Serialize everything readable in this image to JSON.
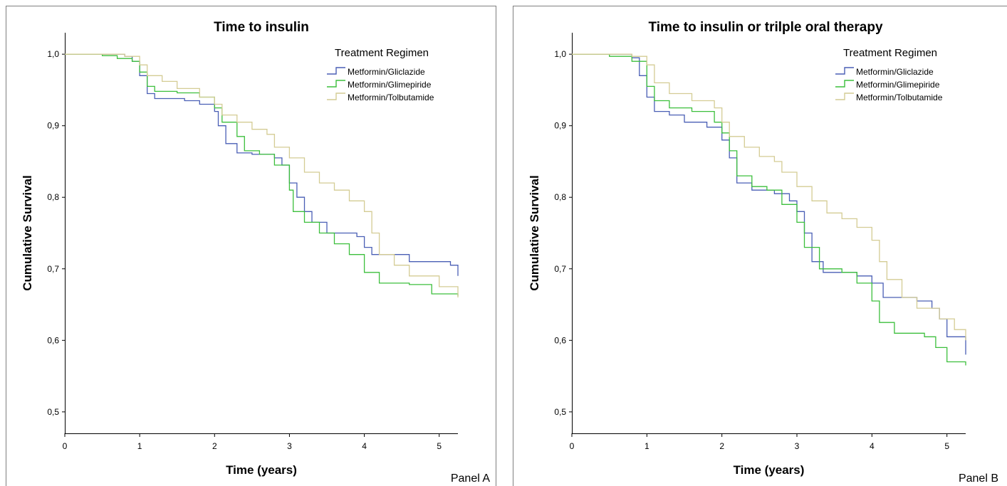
{
  "chart_data": [
    {
      "type": "line",
      "panel_label": "Panel A",
      "title": "Time to insulin",
      "xlabel": "Time (years)",
      "ylabel": "Cumulative Survival",
      "xlim": [
        0,
        5.25
      ],
      "ylim": [
        0.47,
        1.03
      ],
      "x_ticks": [
        0,
        1,
        2,
        3,
        4,
        5
      ],
      "x_tick_labels": [
        "0",
        "1",
        "2",
        "3",
        "4",
        "5"
      ],
      "y_ticks": [
        0.5,
        0.6,
        0.7,
        0.8,
        0.9,
        1.0
      ],
      "y_tick_labels": [
        "0,5",
        "0,6",
        "0,7",
        "0,8",
        "0,9",
        "1,0"
      ],
      "grid": false,
      "step": true,
      "legend": {
        "title": "Treatment Regimen",
        "position": "top-right"
      },
      "series": [
        {
          "name": "Metformin/Gliclazide",
          "color": "#4a5fb5",
          "points": [
            [
              0,
              1.0
            ],
            [
              0.8,
              0.997
            ],
            [
              0.9,
              0.99
            ],
            [
              1.0,
              0.97
            ],
            [
              1.1,
              0.945
            ],
            [
              1.2,
              0.938
            ],
            [
              1.6,
              0.935
            ],
            [
              1.8,
              0.93
            ],
            [
              2.0,
              0.92
            ],
            [
              2.05,
              0.9
            ],
            [
              2.15,
              0.875
            ],
            [
              2.3,
              0.862
            ],
            [
              2.5,
              0.86
            ],
            [
              2.8,
              0.855
            ],
            [
              2.9,
              0.845
            ],
            [
              3.0,
              0.82
            ],
            [
              3.1,
              0.8
            ],
            [
              3.2,
              0.78
            ],
            [
              3.3,
              0.765
            ],
            [
              3.5,
              0.75
            ],
            [
              3.9,
              0.745
            ],
            [
              4.0,
              0.73
            ],
            [
              4.1,
              0.72
            ],
            [
              4.6,
              0.71
            ],
            [
              5.15,
              0.705
            ],
            [
              5.25,
              0.69
            ]
          ]
        },
        {
          "name": "Metformin/Glimepiride",
          "color": "#3cbf3c",
          "points": [
            [
              0,
              1.0
            ],
            [
              0.5,
              0.998
            ],
            [
              0.7,
              0.994
            ],
            [
              0.9,
              0.99
            ],
            [
              1.0,
              0.975
            ],
            [
              1.1,
              0.955
            ],
            [
              1.2,
              0.948
            ],
            [
              1.5,
              0.946
            ],
            [
              1.8,
              0.94
            ],
            [
              2.0,
              0.925
            ],
            [
              2.1,
              0.905
            ],
            [
              2.3,
              0.885
            ],
            [
              2.4,
              0.865
            ],
            [
              2.6,
              0.86
            ],
            [
              2.8,
              0.845
            ],
            [
              3.0,
              0.81
            ],
            [
              3.05,
              0.78
            ],
            [
              3.2,
              0.765
            ],
            [
              3.4,
              0.75
            ],
            [
              3.6,
              0.735
            ],
            [
              3.8,
              0.72
            ],
            [
              4.0,
              0.695
            ],
            [
              4.2,
              0.68
            ],
            [
              4.6,
              0.678
            ],
            [
              4.9,
              0.665
            ],
            [
              5.25,
              0.662
            ]
          ]
        },
        {
          "name": "Metformin/Tolbutamide",
          "color": "#d4cc94",
          "points": [
            [
              0,
              1.0
            ],
            [
              0.8,
              0.997
            ],
            [
              1.0,
              0.985
            ],
            [
              1.1,
              0.97
            ],
            [
              1.3,
              0.962
            ],
            [
              1.5,
              0.952
            ],
            [
              1.8,
              0.94
            ],
            [
              2.0,
              0.93
            ],
            [
              2.1,
              0.915
            ],
            [
              2.3,
              0.905
            ],
            [
              2.5,
              0.895
            ],
            [
              2.7,
              0.888
            ],
            [
              2.8,
              0.87
            ],
            [
              3.0,
              0.855
            ],
            [
              3.2,
              0.835
            ],
            [
              3.4,
              0.82
            ],
            [
              3.6,
              0.81
            ],
            [
              3.8,
              0.795
            ],
            [
              4.0,
              0.78
            ],
            [
              4.1,
              0.75
            ],
            [
              4.2,
              0.72
            ],
            [
              4.4,
              0.705
            ],
            [
              4.6,
              0.69
            ],
            [
              5.0,
              0.675
            ],
            [
              5.25,
              0.66
            ]
          ]
        }
      ]
    },
    {
      "type": "line",
      "panel_label": "Panel B",
      "title": "Time to insulin or trilple oral therapy",
      "xlabel": "Time (years)",
      "ylabel": "Cumulative Survival",
      "xlim": [
        0,
        5.25
      ],
      "ylim": [
        0.47,
        1.03
      ],
      "x_ticks": [
        0,
        1,
        2,
        3,
        4,
        5
      ],
      "x_tick_labels": [
        "0",
        "1",
        "2",
        "3",
        "4",
        "5"
      ],
      "y_ticks": [
        0.5,
        0.6,
        0.7,
        0.8,
        0.9,
        1.0
      ],
      "y_tick_labels": [
        "0,5",
        "0,6",
        "0,7",
        "0,8",
        "0,9",
        "1,0"
      ],
      "grid": false,
      "step": true,
      "legend": {
        "title": "Treatment Regimen",
        "position": "top-right"
      },
      "series": [
        {
          "name": "Metformin/Gliclazide",
          "color": "#4a5fb5",
          "points": [
            [
              0,
              1.0
            ],
            [
              0.8,
              0.995
            ],
            [
              0.9,
              0.97
            ],
            [
              1.0,
              0.94
            ],
            [
              1.1,
              0.92
            ],
            [
              1.3,
              0.915
            ],
            [
              1.5,
              0.905
            ],
            [
              1.8,
              0.898
            ],
            [
              2.0,
              0.88
            ],
            [
              2.1,
              0.855
            ],
            [
              2.2,
              0.82
            ],
            [
              2.4,
              0.81
            ],
            [
              2.7,
              0.805
            ],
            [
              2.9,
              0.795
            ],
            [
              3.0,
              0.78
            ],
            [
              3.1,
              0.75
            ],
            [
              3.2,
              0.71
            ],
            [
              3.35,
              0.695
            ],
            [
              3.8,
              0.69
            ],
            [
              4.0,
              0.68
            ],
            [
              4.15,
              0.66
            ],
            [
              4.6,
              0.655
            ],
            [
              4.8,
              0.645
            ],
            [
              4.9,
              0.63
            ],
            [
              5.0,
              0.605
            ],
            [
              5.25,
              0.58
            ]
          ]
        },
        {
          "name": "Metformin/Glimepiride",
          "color": "#3cbf3c",
          "points": [
            [
              0,
              1.0
            ],
            [
              0.5,
              0.997
            ],
            [
              0.8,
              0.99
            ],
            [
              1.0,
              0.955
            ],
            [
              1.1,
              0.935
            ],
            [
              1.3,
              0.925
            ],
            [
              1.6,
              0.92
            ],
            [
              1.9,
              0.905
            ],
            [
              2.0,
              0.89
            ],
            [
              2.1,
              0.865
            ],
            [
              2.2,
              0.83
            ],
            [
              2.4,
              0.815
            ],
            [
              2.6,
              0.81
            ],
            [
              2.8,
              0.79
            ],
            [
              3.0,
              0.765
            ],
            [
              3.1,
              0.73
            ],
            [
              3.3,
              0.7
            ],
            [
              3.6,
              0.695
            ],
            [
              3.8,
              0.68
            ],
            [
              4.0,
              0.655
            ],
            [
              4.1,
              0.625
            ],
            [
              4.3,
              0.61
            ],
            [
              4.7,
              0.605
            ],
            [
              4.85,
              0.59
            ],
            [
              5.0,
              0.57
            ],
            [
              5.25,
              0.565
            ]
          ]
        },
        {
          "name": "Metformin/Tolbutamide",
          "color": "#d4cc94",
          "points": [
            [
              0,
              1.0
            ],
            [
              0.8,
              0.997
            ],
            [
              1.0,
              0.985
            ],
            [
              1.1,
              0.96
            ],
            [
              1.3,
              0.945
            ],
            [
              1.6,
              0.935
            ],
            [
              1.9,
              0.925
            ],
            [
              2.0,
              0.905
            ],
            [
              2.1,
              0.885
            ],
            [
              2.3,
              0.87
            ],
            [
              2.5,
              0.857
            ],
            [
              2.7,
              0.85
            ],
            [
              2.8,
              0.835
            ],
            [
              3.0,
              0.815
            ],
            [
              3.2,
              0.795
            ],
            [
              3.4,
              0.778
            ],
            [
              3.6,
              0.77
            ],
            [
              3.8,
              0.758
            ],
            [
              4.0,
              0.74
            ],
            [
              4.1,
              0.71
            ],
            [
              4.2,
              0.685
            ],
            [
              4.4,
              0.66
            ],
            [
              4.6,
              0.645
            ],
            [
              4.9,
              0.63
            ],
            [
              5.1,
              0.615
            ],
            [
              5.25,
              0.6
            ]
          ]
        }
      ]
    }
  ]
}
